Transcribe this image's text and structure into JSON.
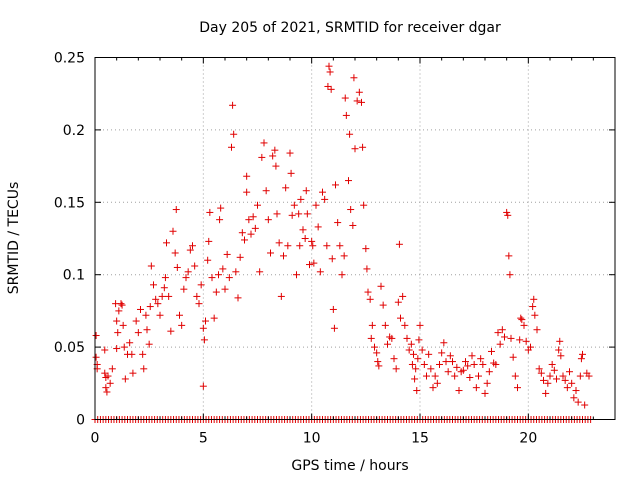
{
  "chart_data": {
    "type": "scatter",
    "title": "Day 205 of 2021, SRMTID for receiver dgar",
    "xlabel": "GPS time / hours",
    "ylabel": "SRMTID / TECUs",
    "xlim": [
      0,
      24
    ],
    "ylim": [
      0,
      0.25
    ],
    "x_ticks": [
      0,
      5,
      10,
      15,
      20
    ],
    "y_ticks": [
      0,
      0.05,
      0.1,
      0.15,
      0.2,
      0.25
    ],
    "x_tick_labels": [
      "0",
      "5",
      "10",
      "15",
      "20"
    ],
    "y_tick_labels": [
      "0",
      "0.05",
      "0.1",
      "0.15",
      "0.2",
      "0.25"
    ],
    "grid": true,
    "marker": "+",
    "color": "#e00000",
    "baseline_zero_range": [
      0,
      22.9
    ],
    "points": [
      [
        0.05,
        0.058
      ],
      [
        0.05,
        0.043
      ],
      [
        0.1,
        0.038
      ],
      [
        0.1,
        0.035
      ],
      [
        0.45,
        0.048
      ],
      [
        0.45,
        0.032
      ],
      [
        0.5,
        0.029
      ],
      [
        0.5,
        0.022
      ],
      [
        0.55,
        0.019
      ],
      [
        0.6,
        0.03
      ],
      [
        0.7,
        0.025
      ],
      [
        0.8,
        0.035
      ],
      [
        0.95,
        0.08
      ],
      [
        1.0,
        0.068
      ],
      [
        1.0,
        0.049
      ],
      [
        1.05,
        0.06
      ],
      [
        1.1,
        0.075
      ],
      [
        1.2,
        0.08
      ],
      [
        1.25,
        0.079
      ],
      [
        1.3,
        0.065
      ],
      [
        1.35,
        0.05
      ],
      [
        1.4,
        0.028
      ],
      [
        1.5,
        0.045
      ],
      [
        1.6,
        0.053
      ],
      [
        1.7,
        0.045
      ],
      [
        1.75,
        0.032
      ],
      [
        1.9,
        0.068
      ],
      [
        2.0,
        0.06
      ],
      [
        2.1,
        0.076
      ],
      [
        2.2,
        0.045
      ],
      [
        2.25,
        0.035
      ],
      [
        2.35,
        0.072
      ],
      [
        2.4,
        0.062
      ],
      [
        2.5,
        0.052
      ],
      [
        2.55,
        0.078
      ],
      [
        2.6,
        0.106
      ],
      [
        2.7,
        0.093
      ],
      [
        2.8,
        0.083
      ],
      [
        2.9,
        0.08
      ],
      [
        3.0,
        0.072
      ],
      [
        3.1,
        0.085
      ],
      [
        3.2,
        0.091
      ],
      [
        3.25,
        0.098
      ],
      [
        3.3,
        0.122
      ],
      [
        3.4,
        0.085
      ],
      [
        3.5,
        0.061
      ],
      [
        3.6,
        0.13
      ],
      [
        3.7,
        0.115
      ],
      [
        3.75,
        0.145
      ],
      [
        3.8,
        0.105
      ],
      [
        3.9,
        0.072
      ],
      [
        4.0,
        0.065
      ],
      [
        4.1,
        0.09
      ],
      [
        4.2,
        0.098
      ],
      [
        4.3,
        0.102
      ],
      [
        4.4,
        0.117
      ],
      [
        4.5,
        0.12
      ],
      [
        4.6,
        0.106
      ],
      [
        4.7,
        0.085
      ],
      [
        4.8,
        0.08
      ],
      [
        4.9,
        0.093
      ],
      [
        5.0,
        0.063
      ],
      [
        5.0,
        0.023
      ],
      [
        5.05,
        0.055
      ],
      [
        5.1,
        0.068
      ],
      [
        5.2,
        0.11
      ],
      [
        5.25,
        0.123
      ],
      [
        5.3,
        0.143
      ],
      [
        5.4,
        0.098
      ],
      [
        5.5,
        0.07
      ],
      [
        5.6,
        0.088
      ],
      [
        5.7,
        0.1
      ],
      [
        5.75,
        0.138
      ],
      [
        5.8,
        0.146
      ],
      [
        5.9,
        0.104
      ],
      [
        6.0,
        0.09
      ],
      [
        6.1,
        0.114
      ],
      [
        6.2,
        0.098
      ],
      [
        6.3,
        0.188
      ],
      [
        6.35,
        0.217
      ],
      [
        6.4,
        0.197
      ],
      [
        6.5,
        0.102
      ],
      [
        6.6,
        0.084
      ],
      [
        6.7,
        0.112
      ],
      [
        6.8,
        0.129
      ],
      [
        6.9,
        0.124
      ],
      [
        7.0,
        0.157
      ],
      [
        7.0,
        0.168
      ],
      [
        7.1,
        0.138
      ],
      [
        7.2,
        0.128
      ],
      [
        7.3,
        0.14
      ],
      [
        7.4,
        0.132
      ],
      [
        7.5,
        0.148
      ],
      [
        7.6,
        0.102
      ],
      [
        7.7,
        0.181
      ],
      [
        7.8,
        0.191
      ],
      [
        7.9,
        0.158
      ],
      [
        8.0,
        0.138
      ],
      [
        8.1,
        0.115
      ],
      [
        8.2,
        0.182
      ],
      [
        8.3,
        0.186
      ],
      [
        8.35,
        0.175
      ],
      [
        8.4,
        0.142
      ],
      [
        8.5,
        0.122
      ],
      [
        8.6,
        0.085
      ],
      [
        8.7,
        0.113
      ],
      [
        8.8,
        0.16
      ],
      [
        8.9,
        0.12
      ],
      [
        9.0,
        0.184
      ],
      [
        9.05,
        0.17
      ],
      [
        9.1,
        0.141
      ],
      [
        9.2,
        0.148
      ],
      [
        9.3,
        0.1
      ],
      [
        9.4,
        0.142
      ],
      [
        9.45,
        0.12
      ],
      [
        9.5,
        0.152
      ],
      [
        9.6,
        0.131
      ],
      [
        9.7,
        0.125
      ],
      [
        9.75,
        0.158
      ],
      [
        9.8,
        0.142
      ],
      [
        9.9,
        0.107
      ],
      [
        10.0,
        0.123
      ],
      [
        10.05,
        0.12
      ],
      [
        10.1,
        0.108
      ],
      [
        10.2,
        0.148
      ],
      [
        10.3,
        0.133
      ],
      [
        10.4,
        0.102
      ],
      [
        10.5,
        0.157
      ],
      [
        10.6,
        0.152
      ],
      [
        10.7,
        0.12
      ],
      [
        10.75,
        0.23
      ],
      [
        10.8,
        0.244
      ],
      [
        10.85,
        0.24
      ],
      [
        10.9,
        0.228
      ],
      [
        10.95,
        0.111
      ],
      [
        11.0,
        0.076
      ],
      [
        11.05,
        0.063
      ],
      [
        11.1,
        0.162
      ],
      [
        11.2,
        0.136
      ],
      [
        11.3,
        0.12
      ],
      [
        11.4,
        0.1
      ],
      [
        11.5,
        0.113
      ],
      [
        11.55,
        0.222
      ],
      [
        11.6,
        0.21
      ],
      [
        11.7,
        0.165
      ],
      [
        11.75,
        0.197
      ],
      [
        11.8,
        0.145
      ],
      [
        11.9,
        0.134
      ],
      [
        11.95,
        0.236
      ],
      [
        12.0,
        0.187
      ],
      [
        12.1,
        0.22
      ],
      [
        12.2,
        0.226
      ],
      [
        12.3,
        0.219
      ],
      [
        12.35,
        0.188
      ],
      [
        12.4,
        0.148
      ],
      [
        12.5,
        0.118
      ],
      [
        12.55,
        0.104
      ],
      [
        12.6,
        0.088
      ],
      [
        12.7,
        0.083
      ],
      [
        12.75,
        0.056
      ],
      [
        12.8,
        0.065
      ],
      [
        12.9,
        0.05
      ],
      [
        13.0,
        0.046
      ],
      [
        13.05,
        0.04
      ],
      [
        13.1,
        0.037
      ],
      [
        13.2,
        0.092
      ],
      [
        13.3,
        0.079
      ],
      [
        13.4,
        0.065
      ],
      [
        13.5,
        0.052
      ],
      [
        13.6,
        0.057
      ],
      [
        13.7,
        0.056
      ],
      [
        13.8,
        0.042
      ],
      [
        13.9,
        0.035
      ],
      [
        14.0,
        0.081
      ],
      [
        14.05,
        0.121
      ],
      [
        14.1,
        0.07
      ],
      [
        14.2,
        0.085
      ],
      [
        14.3,
        0.065
      ],
      [
        14.4,
        0.056
      ],
      [
        14.5,
        0.048
      ],
      [
        14.6,
        0.052
      ],
      [
        14.65,
        0.038
      ],
      [
        14.7,
        0.045
      ],
      [
        14.75,
        0.028
      ],
      [
        14.8,
        0.035
      ],
      [
        14.85,
        0.02
      ],
      [
        14.9,
        0.042
      ],
      [
        14.95,
        0.055
      ],
      [
        15.0,
        0.065
      ],
      [
        15.1,
        0.048
      ],
      [
        15.2,
        0.038
      ],
      [
        15.3,
        0.03
      ],
      [
        15.4,
        0.045
      ],
      [
        15.5,
        0.035
      ],
      [
        15.6,
        0.022
      ],
      [
        15.7,
        0.03
      ],
      [
        15.8,
        0.025
      ],
      [
        15.9,
        0.038
      ],
      [
        16.0,
        0.046
      ],
      [
        16.1,
        0.053
      ],
      [
        16.2,
        0.04
      ],
      [
        16.3,
        0.033
      ],
      [
        16.4,
        0.044
      ],
      [
        16.5,
        0.04
      ],
      [
        16.6,
        0.03
      ],
      [
        16.7,
        0.036
      ],
      [
        16.8,
        0.02
      ],
      [
        16.9,
        0.033
      ],
      [
        17.0,
        0.034
      ],
      [
        17.1,
        0.04
      ],
      [
        17.2,
        0.037
      ],
      [
        17.3,
        0.029
      ],
      [
        17.4,
        0.044
      ],
      [
        17.5,
        0.038
      ],
      [
        17.6,
        0.022
      ],
      [
        17.7,
        0.03
      ],
      [
        17.8,
        0.042
      ],
      [
        17.9,
        0.038
      ],
      [
        18.0,
        0.018
      ],
      [
        18.1,
        0.025
      ],
      [
        18.2,
        0.033
      ],
      [
        18.3,
        0.047
      ],
      [
        18.4,
        0.039
      ],
      [
        18.5,
        0.038
      ],
      [
        18.6,
        0.06
      ],
      [
        18.7,
        0.052
      ],
      [
        18.8,
        0.062
      ],
      [
        18.9,
        0.057
      ],
      [
        19.0,
        0.143
      ],
      [
        19.05,
        0.141
      ],
      [
        19.1,
        0.113
      ],
      [
        19.15,
        0.1
      ],
      [
        19.2,
        0.056
      ],
      [
        19.3,
        0.043
      ],
      [
        19.4,
        0.03
      ],
      [
        19.5,
        0.022
      ],
      [
        19.6,
        0.055
      ],
      [
        19.65,
        0.07
      ],
      [
        19.7,
        0.069
      ],
      [
        19.8,
        0.065
      ],
      [
        19.9,
        0.054
      ],
      [
        20.0,
        0.048
      ],
      [
        20.1,
        0.05
      ],
      [
        20.2,
        0.078
      ],
      [
        20.25,
        0.083
      ],
      [
        20.3,
        0.072
      ],
      [
        20.4,
        0.062
      ],
      [
        20.5,
        0.035
      ],
      [
        20.6,
        0.032
      ],
      [
        20.7,
        0.027
      ],
      [
        20.8,
        0.018
      ],
      [
        20.9,
        0.025
      ],
      [
        21.0,
        0.03
      ],
      [
        21.1,
        0.038
      ],
      [
        21.2,
        0.034
      ],
      [
        21.3,
        0.028
      ],
      [
        21.4,
        0.048
      ],
      [
        21.45,
        0.054
      ],
      [
        21.5,
        0.044
      ],
      [
        21.6,
        0.03
      ],
      [
        21.7,
        0.027
      ],
      [
        21.8,
        0.022
      ],
      [
        21.9,
        0.033
      ],
      [
        22.0,
        0.025
      ],
      [
        22.1,
        0.015
      ],
      [
        22.2,
        0.02
      ],
      [
        22.3,
        0.012
      ],
      [
        22.4,
        0.03
      ],
      [
        22.45,
        0.042
      ],
      [
        22.5,
        0.045
      ],
      [
        22.6,
        0.01
      ],
      [
        22.7,
        0.032
      ],
      [
        22.8,
        0.03
      ]
    ]
  }
}
